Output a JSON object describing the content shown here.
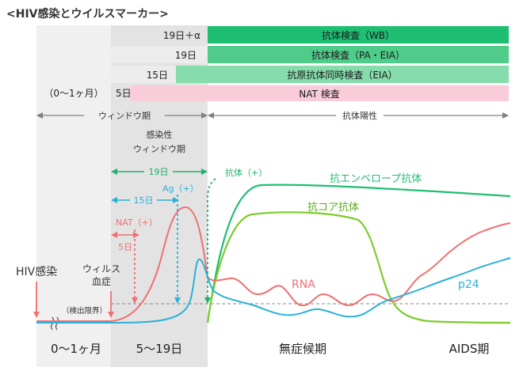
{
  "title": "<HIV感染とウイルスマーカー>",
  "tests": [
    {
      "days": "19日＋α",
      "name": "抗体検査（WB）",
      "color": "#1ebf73",
      "text_color": "#1a1a1a"
    },
    {
      "days": "19日",
      "name": "抗体検査（PA・EIA）",
      "color": "#4fcc8a",
      "text_color": "#1a1a1a"
    },
    {
      "days": "15日",
      "name": "抗原抗体同時検査（EIA）",
      "color": "#86dcab",
      "text_color": "#1a1a1a"
    },
    {
      "days": "5日",
      "name": "NAT 検査",
      "color": "#f8ccd8",
      "text_color": "#1a1a1a"
    }
  ],
  "early_range_label": "（0～1ヶ月）",
  "periods": {
    "window": "ウィンドウ期",
    "antibody_positive": "抗体陽性",
    "infectious_window_line1": "感染性",
    "infectious_window_line2": "ウィンドウ期"
  },
  "spans": {
    "d19": "19日",
    "d15": "15日",
    "d5": "5日"
  },
  "markers": {
    "antibody_plus": "抗体（+）",
    "ag_plus": "Ag（+）",
    "nat_plus": "NAT（+）"
  },
  "curves": {
    "envelope": "抗エンベロープ抗体",
    "core": "抗コア抗体",
    "rna": "RNA",
    "p24": "p24"
  },
  "events": {
    "infection": "HIV感染",
    "viremia_line1": "ウィルス",
    "viremia_line2": "血症",
    "detection_limit": "（検出限界）"
  },
  "x_axis": [
    "0～1ヶ月",
    "5～19日",
    "無症候期",
    "AIDS期"
  ],
  "colors": {
    "rna": "#f07070",
    "p24": "#2ab0d8",
    "envelope": "#1ebf73",
    "core": "#7ccc2a",
    "dark_green": "#22b36a",
    "gray_band": "#e3e3e3",
    "arrow_gray": "#808080"
  }
}
